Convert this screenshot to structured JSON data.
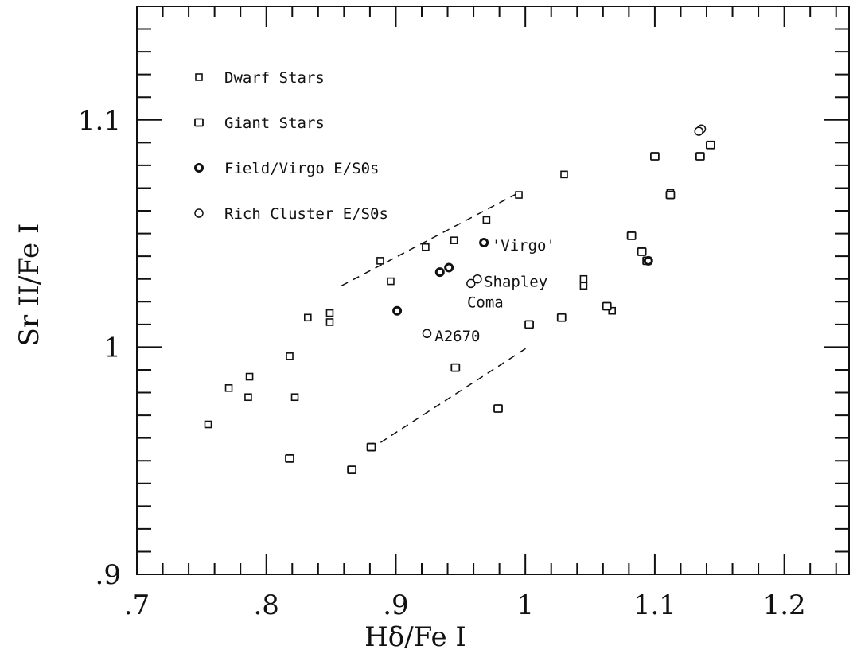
{
  "chart_data": {
    "type": "scatter",
    "xlabel": "Hδ/Fe I",
    "ylabel": "Sr II/Fe I",
    "xlim": [
      0.7,
      1.25
    ],
    "ylim": [
      0.9,
      1.15
    ],
    "x_ticks": [
      {
        "value": 0.7,
        "label": ".7"
      },
      {
        "value": 0.8,
        "label": ".8"
      },
      {
        "value": 0.9,
        "label": ".9"
      },
      {
        "value": 1.0,
        "label": "1"
      },
      {
        "value": 1.1,
        "label": "1.1"
      },
      {
        "value": 1.2,
        "label": "1.2"
      }
    ],
    "y_ticks": [
      {
        "value": 0.9,
        "label": ".9"
      },
      {
        "value": 1.0,
        "label": "1"
      },
      {
        "value": 1.1,
        "label": "1.1"
      }
    ],
    "legend": {
      "position": "top-left",
      "entries": [
        {
          "label": "Dwarf Stars",
          "marker": "small-square"
        },
        {
          "label": "Giant Stars",
          "marker": "square"
        },
        {
          "label": "Field/Virgo E/S0s",
          "marker": "bold-circle"
        },
        {
          "label": "Rich Cluster E/S0s",
          "marker": "circle"
        }
      ]
    },
    "series": [
      {
        "name": "Dwarf Stars",
        "marker": "small-square",
        "points": [
          [
            0.755,
            0.966
          ],
          [
            0.771,
            0.982
          ],
          [
            0.786,
            0.978
          ],
          [
            0.787,
            0.987
          ],
          [
            0.818,
            0.996
          ],
          [
            0.822,
            0.978
          ],
          [
            0.832,
            1.013
          ],
          [
            0.849,
            1.011
          ],
          [
            0.849,
            1.015
          ],
          [
            0.888,
            1.038
          ],
          [
            0.896,
            1.029
          ],
          [
            0.923,
            1.044
          ],
          [
            0.945,
            1.047
          ],
          [
            0.97,
            1.056
          ],
          [
            0.995,
            1.067
          ],
          [
            1.03,
            1.076
          ],
          [
            1.045,
            1.03
          ],
          [
            1.045,
            1.027
          ],
          [
            1.067,
            1.016
          ],
          [
            1.112,
            1.068
          ]
        ]
      },
      {
        "name": "Giant Stars",
        "marker": "square",
        "points": [
          [
            0.818,
            0.951
          ],
          [
            0.866,
            0.946
          ],
          [
            0.881,
            0.956
          ],
          [
            0.946,
            0.991
          ],
          [
            0.979,
            0.973
          ],
          [
            1.003,
            1.01
          ],
          [
            1.028,
            1.013
          ],
          [
            1.063,
            1.018
          ],
          [
            1.082,
            1.049
          ],
          [
            1.09,
            1.042
          ],
          [
            1.094,
            1.038
          ],
          [
            1.1,
            1.084
          ],
          [
            1.112,
            1.067
          ],
          [
            1.135,
            1.084
          ],
          [
            1.143,
            1.089
          ]
        ]
      },
      {
        "name": "Field/Virgo E/S0s",
        "marker": "bold-circle",
        "points": [
          [
            0.901,
            1.016
          ],
          [
            0.934,
            1.033
          ],
          [
            0.941,
            1.035
          ],
          [
            0.968,
            1.046
          ],
          [
            1.095,
            1.038
          ]
        ]
      },
      {
        "name": "Rich Cluster E/S0s",
        "marker": "circle",
        "points": [
          [
            0.924,
            1.006
          ],
          [
            0.958,
            1.028
          ],
          [
            0.963,
            1.03
          ],
          [
            1.136,
            1.096
          ],
          [
            1.134,
            1.095
          ]
        ]
      }
    ],
    "dashed_lines": [
      {
        "x": [
          0.858,
          0.995
        ],
        "y": [
          1.027,
          1.068
        ]
      },
      {
        "x": [
          0.88,
          1.002
        ],
        "y": [
          0.955,
          1.0
        ]
      }
    ],
    "annotations": [
      {
        "text": "'Virgo'",
        "x": 0.974,
        "y": 1.045
      },
      {
        "text": "Shapley",
        "x": 0.968,
        "y": 1.029
      },
      {
        "text": "Coma",
        "x": 0.955,
        "y": 1.02
      },
      {
        "text": "A2670",
        "x": 0.93,
        "y": 1.005
      }
    ],
    "grid": false
  }
}
